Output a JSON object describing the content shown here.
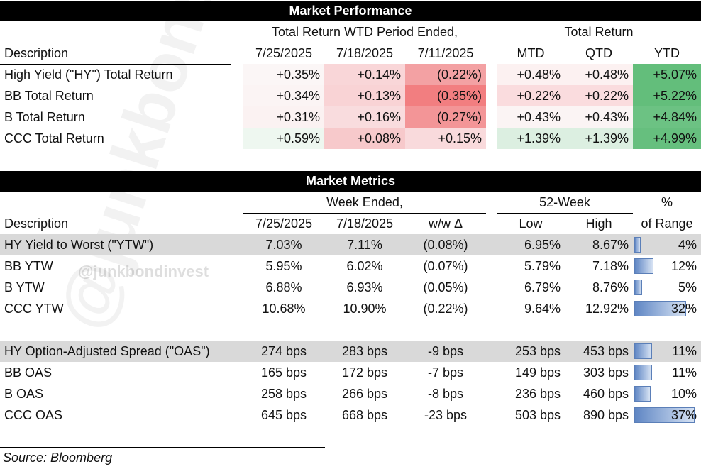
{
  "watermark": "@junkbondinvest",
  "performance": {
    "title": "Market Performance",
    "group_wtd": "Total Return WTD Period Ended,",
    "group_total": "Total Return",
    "col_description": "Description",
    "cols": [
      "7/25/2025",
      "7/18/2025",
      "7/11/2025",
      "MTD",
      "QTD",
      "YTD"
    ],
    "rows": [
      {
        "label": "High Yield (\"HY\") Total Return",
        "values": [
          "+0.35%",
          "+0.14%",
          "(0.22%)",
          "+0.48%",
          "+0.48%",
          "+5.07%"
        ],
        "colors": [
          "#fbf6f6",
          "#f9d6d8",
          "#f3a1a3",
          "#fcf1f1",
          "#fcf1f1",
          "#63be7b"
        ]
      },
      {
        "label": "BB Total Return",
        "values": [
          "+0.34%",
          "+0.13%",
          "(0.35%)",
          "+0.22%",
          "+0.22%",
          "+5.22%"
        ],
        "colors": [
          "#fbf4f4",
          "#f9d3d5",
          "#f27e80",
          "#fadcde",
          "#fadcde",
          "#63be7b"
        ]
      },
      {
        "label": "B Total Return",
        "values": [
          "+0.31%",
          "+0.16%",
          "(0.27%)",
          "+0.43%",
          "+0.43%",
          "+4.84%"
        ],
        "colors": [
          "#fbf2f2",
          "#f9dcde",
          "#f39597",
          "#fbf4f4",
          "#fbf4f4",
          "#6cc283"
        ]
      },
      {
        "label": "CCC Total Return",
        "values": [
          "+0.59%",
          "+0.08%",
          "+0.15%",
          "+1.39%",
          "+1.39%",
          "+4.99%"
        ],
        "colors": [
          "#eef7f0",
          "#f7c9cb",
          "#f9dadc",
          "#dcefe1",
          "#dcefe1",
          "#66bf7e"
        ]
      }
    ]
  },
  "metrics": {
    "title": "Market Metrics",
    "group_week": "Week Ended,",
    "group_52": "52-Week",
    "group_pct": "%",
    "col_description": "Description",
    "cols": [
      "7/25/2025",
      "7/18/2025",
      "w/w Δ",
      "Low",
      "High",
      "of Range"
    ],
    "rows": [
      {
        "label": "HY Yield to Worst (\"YTW\")",
        "values": [
          "7.03%",
          "7.11%",
          "(0.08%)",
          "6.95%",
          "8.67%"
        ],
        "pct": "4%",
        "pct_value": 4,
        "shaded": true
      },
      {
        "label": "BB YTW",
        "values": [
          "5.95%",
          "6.02%",
          "(0.07%)",
          "5.79%",
          "7.18%"
        ],
        "pct": "12%",
        "pct_value": 12,
        "shaded": false
      },
      {
        "label": "B YTW",
        "values": [
          "6.88%",
          "6.93%",
          "(0.05%)",
          "6.79%",
          "8.76%"
        ],
        "pct": "5%",
        "pct_value": 5,
        "shaded": false
      },
      {
        "label": "CCC YTW",
        "values": [
          "10.68%",
          "10.90%",
          "(0.22%)",
          "9.64%",
          "12.92%"
        ],
        "pct": "32%",
        "pct_value": 32,
        "shaded": false
      },
      {
        "label": "HY Option-Adjusted Spread (\"OAS\")",
        "values": [
          "274 bps",
          "283 bps",
          "-9 bps",
          "253 bps",
          "453 bps"
        ],
        "pct": "11%",
        "pct_value": 11,
        "shaded": true
      },
      {
        "label": "BB OAS",
        "values": [
          "165 bps",
          "172 bps",
          "-7 bps",
          "149 bps",
          "303 bps"
        ],
        "pct": "11%",
        "pct_value": 11,
        "shaded": false
      },
      {
        "label": "B OAS",
        "values": [
          "258 bps",
          "266 bps",
          "-8 bps",
          "236 bps",
          "460 bps"
        ],
        "pct": "10%",
        "pct_value": 10,
        "shaded": false
      },
      {
        "label": "CCC OAS",
        "values": [
          "645 bps",
          "668 bps",
          "-23 bps",
          "503 bps",
          "890 bps"
        ],
        "pct": "37%",
        "pct_value": 37,
        "shaded": false
      }
    ]
  },
  "source": "Source: Bloomberg"
}
